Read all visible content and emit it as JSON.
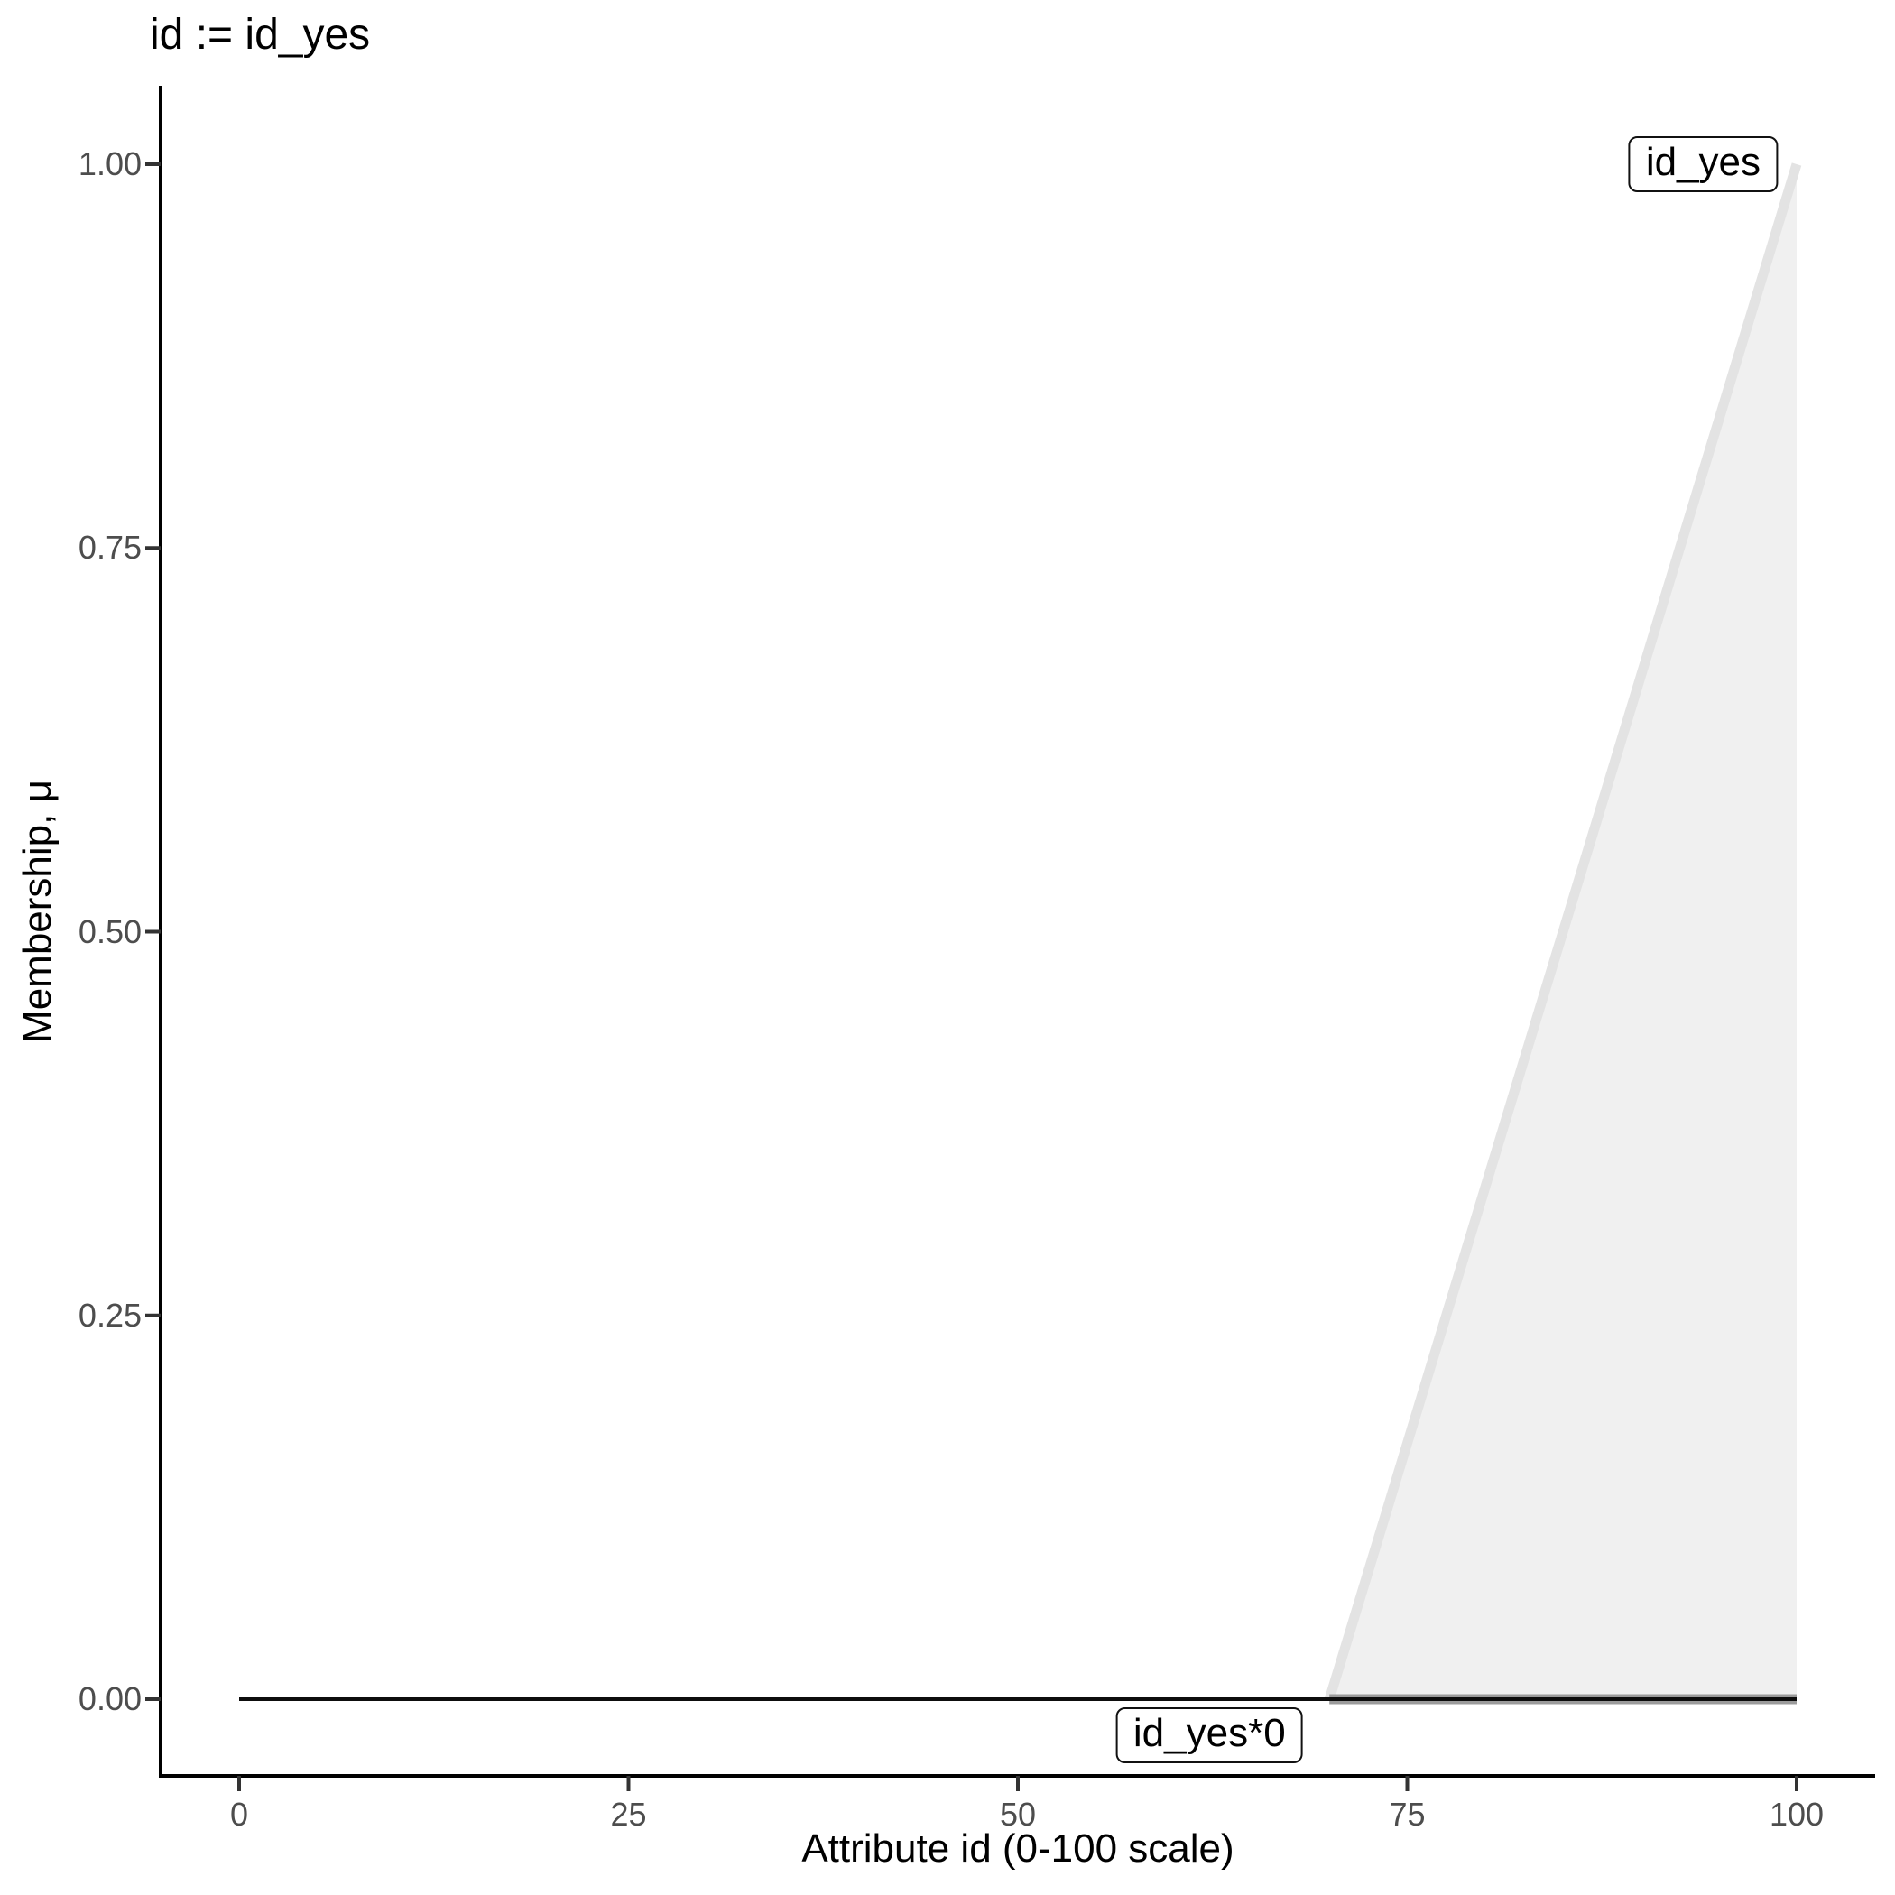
{
  "title": "id := id_yes",
  "axes": {
    "x": {
      "label": "Attribute id (0-100 scale)",
      "ticks": [
        "0",
        "25",
        "50",
        "75",
        "100"
      ]
    },
    "y": {
      "label": "Membership, μ",
      "ticks": [
        "0.00",
        "0.25",
        "0.50",
        "0.75",
        "1.00"
      ]
    }
  },
  "chart_data": {
    "type": "area",
    "title": "id := id_yes",
    "xlabel": "Attribute id (0-100 scale)",
    "ylabel": "Membership, μ",
    "xlim": [
      0,
      100
    ],
    "ylim": [
      0,
      1
    ],
    "x_ticks": [
      0,
      25,
      50,
      75,
      100
    ],
    "y_ticks": [
      0,
      0.25,
      0.5,
      0.75,
      1
    ],
    "grid": false,
    "legend": "none",
    "series": [
      {
        "name": "id_yes-membership",
        "fill_points": [
          [
            70,
            0
          ],
          [
            100,
            1
          ],
          [
            100,
            0
          ]
        ],
        "line_points": [
          [
            70,
            0
          ],
          [
            100,
            1
          ]
        ],
        "fill": "#f0f0f0",
        "stroke": "#e3e3e3",
        "stroke_width": 11
      },
      {
        "name": "id_yes-scaled-support",
        "line_points": [
          [
            70,
            0
          ],
          [
            100,
            0
          ]
        ],
        "stroke": "#9b9b9b",
        "stroke_width": 11
      },
      {
        "name": "id_yes-times-zero",
        "line_points": [
          [
            0,
            0
          ],
          [
            100,
            0
          ]
        ],
        "stroke": "#0d0d0d",
        "stroke_width": 4
      }
    ],
    "annotations": [
      {
        "text": "id_yes",
        "x": 94,
        "y": 1.0
      },
      {
        "text": "id_yes*0",
        "x": 62.3,
        "y": -0.0235
      }
    ]
  },
  "colors": {
    "axis": "#000000",
    "tick_mark": "#333333",
    "tick_label": "#4d4d4d",
    "annotation_border": "#111111",
    "background": "#ffffff"
  }
}
